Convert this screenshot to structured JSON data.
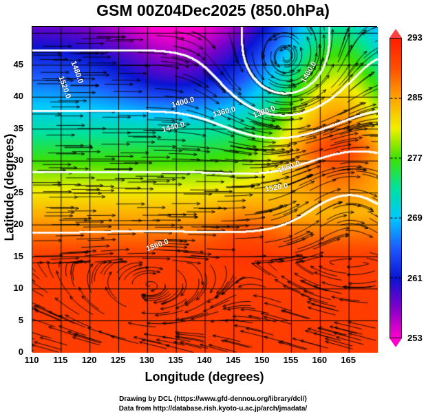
{
  "title": "GSM 00Z04Dec2025 (850.0hPa)",
  "x_axis": {
    "label": "Longitude (degrees)",
    "ticks": [
      "110",
      "115",
      "120",
      "125",
      "130",
      "135",
      "140",
      "145",
      "150",
      "155",
      "160",
      "165"
    ],
    "range": [
      110,
      170
    ]
  },
  "y_axis": {
    "label": "Latitude  (degrees)",
    "ticks": [
      "0",
      "5",
      "10",
      "15",
      "20",
      "25",
      "30",
      "35",
      "40",
      "45"
    ],
    "range": [
      0,
      51
    ]
  },
  "colorbar": {
    "ticks": [
      "293",
      "285",
      "277",
      "269",
      "261",
      "253"
    ],
    "range": [
      253,
      293
    ],
    "top_color": "#ff4040",
    "bottom_color": "#ff00cc"
  },
  "contour_labels": [
    "1480.0",
    "1520.0",
    "1400.0",
    "1360.0",
    "1440.0",
    "1320.0",
    "1400.0",
    "1560.0",
    "1520.0",
    "1560.0"
  ],
  "credits": [
    "Drawing by DCL (https://www.gfd-dennou.org/library/dcl/)",
    "Data from http://database.rish.kyoto-u.ac.jp/arch/jmadata/"
  ]
}
